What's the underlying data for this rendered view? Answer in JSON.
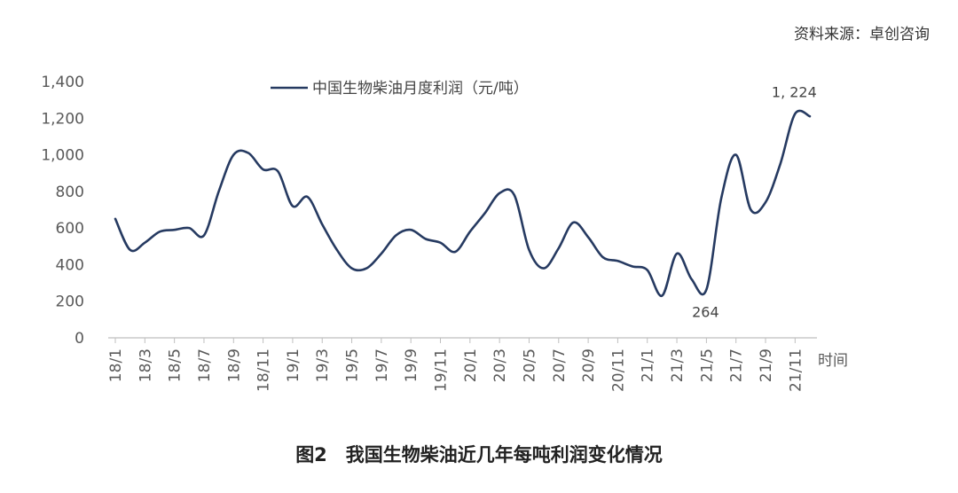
{
  "source_text": "资料来源：卓创咨询",
  "caption": "图2　我国生物柴油近几年每吨利润变化情况",
  "colors": {
    "line": "#263A61",
    "axis": "#BFBFBF"
  },
  "chart_data": {
    "type": "line",
    "title": "",
    "legend": "中国生物柴油月度利润（元/吨）",
    "legend_position": "top",
    "xlabel": "时间",
    "ylabel": "",
    "ylim": [
      0,
      1400
    ],
    "yticks": [
      0,
      200,
      400,
      600,
      800,
      1000,
      1200,
      1400
    ],
    "ytick_labels": [
      "0",
      "200",
      "400",
      "600",
      "800",
      "1,000",
      "1,200",
      "1,400"
    ],
    "x": [
      "18/1",
      "18/2",
      "18/3",
      "18/4",
      "18/5",
      "18/6",
      "18/7",
      "18/8",
      "18/9",
      "18/10",
      "18/11",
      "18/12",
      "19/1",
      "19/2",
      "19/3",
      "19/4",
      "19/5",
      "19/6",
      "19/7",
      "19/8",
      "19/9",
      "19/10",
      "19/11",
      "19/12",
      "20/1",
      "20/2",
      "20/3",
      "20/4",
      "20/5",
      "20/6",
      "20/7",
      "20/8",
      "20/9",
      "20/10",
      "20/11",
      "20/12",
      "21/1",
      "21/2",
      "21/3",
      "21/4",
      "21/5",
      "21/6",
      "21/7",
      "21/8",
      "21/9",
      "21/10",
      "21/11",
      "21/12"
    ],
    "xtick_labels": [
      "18/1",
      "18/3",
      "18/5",
      "18/7",
      "18/9",
      "18/11",
      "19/1",
      "19/3",
      "19/5",
      "19/7",
      "19/9",
      "19/11",
      "20/1",
      "20/3",
      "20/5",
      "20/7",
      "20/9",
      "20/11",
      "21/1",
      "21/3",
      "21/5",
      "21/7",
      "21/9",
      "21/11"
    ],
    "series": [
      {
        "name": "中国生物柴油月度利润（元/吨）",
        "values": [
          650,
          480,
          520,
          580,
          590,
          600,
          560,
          800,
          1000,
          1010,
          920,
          910,
          720,
          770,
          620,
          480,
          380,
          380,
          460,
          560,
          590,
          540,
          520,
          470,
          580,
          680,
          790,
          780,
          480,
          380,
          490,
          630,
          550,
          440,
          420,
          390,
          370,
          230,
          460,
          320,
          264,
          760,
          1000,
          700,
          740,
          950,
          1224,
          1210
        ]
      }
    ],
    "annotations": [
      {
        "text": "264",
        "x": "21/5",
        "y": 264
      },
      {
        "text": "1, 224",
        "x": "21/11",
        "y": 1224
      }
    ]
  }
}
